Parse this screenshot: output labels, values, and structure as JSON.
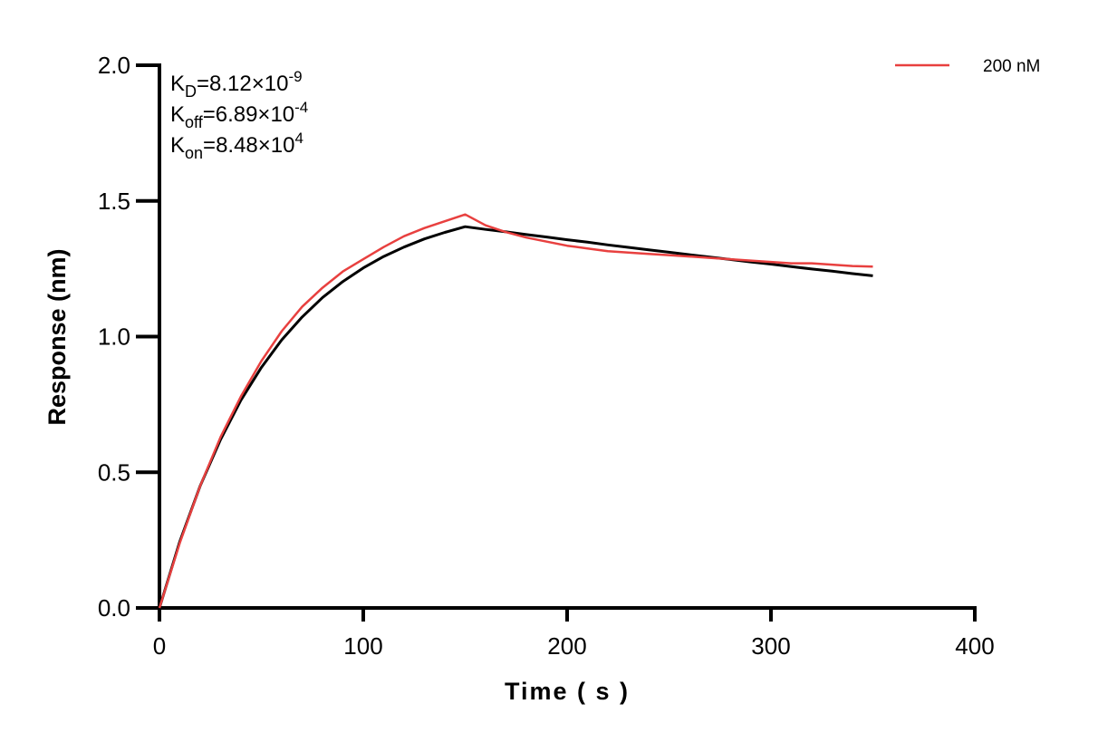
{
  "chart_data": {
    "type": "line",
    "xlabel": "Time ( s )",
    "ylabel": "Response (nm)",
    "xlim": [
      0,
      400
    ],
    "ylim": [
      0,
      2.0
    ],
    "xticks": [
      "0",
      "100",
      "200",
      "300",
      "400"
    ],
    "yticks": [
      "0.0",
      "0.5",
      "1.0",
      "1.5",
      "2.0"
    ],
    "grid": false,
    "legend_placement": "top-right",
    "annotations": [
      {
        "main": "K",
        "sub": "D",
        "rest": "=8.12×10",
        "sup": "-9"
      },
      {
        "main": "K",
        "sub": "off",
        "rest": "=6.89×10",
        "sup": "-4"
      },
      {
        "main": "K",
        "sub": "on",
        "rest": "=8.48×10",
        "sup": "4"
      }
    ],
    "series": [
      {
        "name": "200 nM",
        "color": "#e8403f",
        "x": [
          0,
          10,
          20,
          30,
          40,
          50,
          60,
          70,
          80,
          90,
          100,
          110,
          120,
          130,
          140,
          150,
          160,
          170,
          180,
          190,
          200,
          210,
          220,
          230,
          240,
          250,
          260,
          270,
          280,
          290,
          300,
          310,
          320,
          330,
          340,
          350
        ],
        "y": [
          0,
          0.24,
          0.45,
          0.63,
          0.78,
          0.91,
          1.02,
          1.11,
          1.18,
          1.24,
          1.285,
          1.33,
          1.37,
          1.4,
          1.425,
          1.45,
          1.41,
          1.385,
          1.365,
          1.35,
          1.335,
          1.325,
          1.315,
          1.31,
          1.305,
          1.3,
          1.295,
          1.29,
          1.285,
          1.28,
          1.275,
          1.27,
          1.27,
          1.265,
          1.26,
          1.258
        ]
      },
      {
        "color": "#000000",
        "x": [
          0,
          10,
          20,
          30,
          40,
          50,
          60,
          70,
          80,
          90,
          100,
          110,
          120,
          130,
          140,
          150,
          160,
          170,
          180,
          190,
          200,
          210,
          220,
          230,
          240,
          250,
          260,
          270,
          280,
          290,
          300,
          310,
          320,
          330,
          340,
          350
        ],
        "y": [
          0,
          0.245,
          0.45,
          0.621,
          0.766,
          0.886,
          0.988,
          1.072,
          1.144,
          1.203,
          1.253,
          1.295,
          1.33,
          1.36,
          1.384,
          1.405,
          1.395,
          1.386,
          1.376,
          1.367,
          1.357,
          1.348,
          1.338,
          1.329,
          1.32,
          1.311,
          1.302,
          1.293,
          1.284,
          1.275,
          1.267,
          1.258,
          1.249,
          1.241,
          1.232,
          1.224
        ]
      }
    ]
  }
}
